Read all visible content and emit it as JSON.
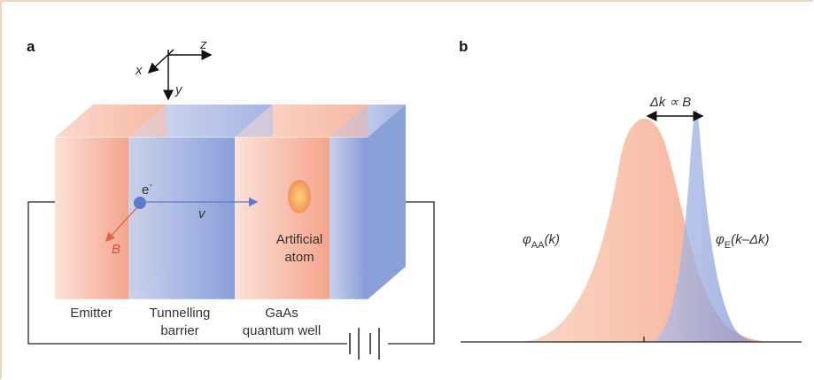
{
  "panel_a": {
    "label": "a",
    "axes": {
      "x": "x",
      "y": "y",
      "z": "z"
    },
    "electron": {
      "symbol": "e",
      "charge": "-"
    },
    "velocity": "v",
    "field": "B",
    "artificial_atom": [
      "Artificial",
      "atom"
    ],
    "layers": {
      "emitter": [
        "Emitter"
      ],
      "barrier": [
        "Tunnelling",
        "barrier"
      ],
      "well": [
        "GaAs",
        "quantum well"
      ]
    }
  },
  "panel_b": {
    "label": "b",
    "shift": "Δk ∝ B",
    "phi_aa": {
      "symbol": "φ",
      "subscript": "AA",
      "argument": "(k)"
    },
    "phi_e": {
      "symbol": "φ",
      "subscript": "E",
      "argument": "(k–Δk)"
    }
  }
}
